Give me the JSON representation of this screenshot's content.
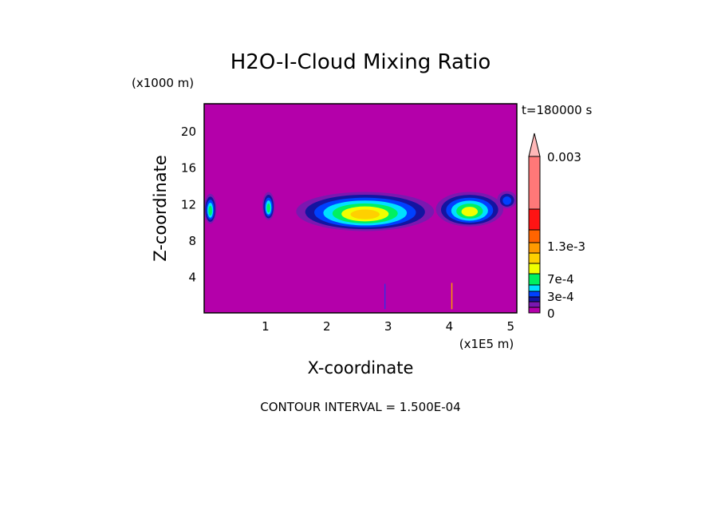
{
  "chart_data": {
    "type": "heatmap",
    "title": "H2O-I-Cloud Mixing Ratio",
    "xlabel": "X-coordinate",
    "ylabel": "Z-coordinate",
    "x_unit": "(x1E5 m)",
    "y_unit": "(x1000 m)",
    "time_label": "t=180000 s",
    "footer": "CONTOUR INTERVAL = 1.500E-04",
    "xlim": [
      0,
      5.1
    ],
    "ylim": [
      0,
      23
    ],
    "x_ticks": [
      "1",
      "2",
      "3",
      "4",
      "5"
    ],
    "y_ticks": [
      "4",
      "8",
      "12",
      "16",
      "20"
    ],
    "colorbar": {
      "labels": [
        "0",
        "3e-4",
        "7e-4",
        "1.3e-3",
        "0.003"
      ],
      "colors": [
        "#b400aa",
        "#7a18b0",
        "#1414a0",
        "#0040ff",
        "#00e0ff",
        "#00f060",
        "#f0ff00",
        "#ffd000",
        "#ff9a00",
        "#ff6400",
        "#ff1414",
        "#ff7878",
        "#ffb8b8"
      ]
    },
    "cloud_cells": [
      {
        "x": [
          0.0,
          0.2
        ],
        "z": [
          9.8,
          13.1
        ],
        "max_level": 5
      },
      {
        "x": [
          0.95,
          1.15
        ],
        "z": [
          10.2,
          13.3
        ],
        "max_level": 5
      },
      {
        "x": [
          1.5,
          3.75
        ],
        "z": [
          9.0,
          13.3
        ],
        "max_level": 7
      },
      {
        "x": [
          3.78,
          4.88
        ],
        "z": [
          9.5,
          13.3
        ],
        "max_level": 6
      },
      {
        "x": [
          4.78,
          5.1
        ],
        "z": [
          11.5,
          13.4
        ],
        "max_level": 3
      }
    ]
  }
}
